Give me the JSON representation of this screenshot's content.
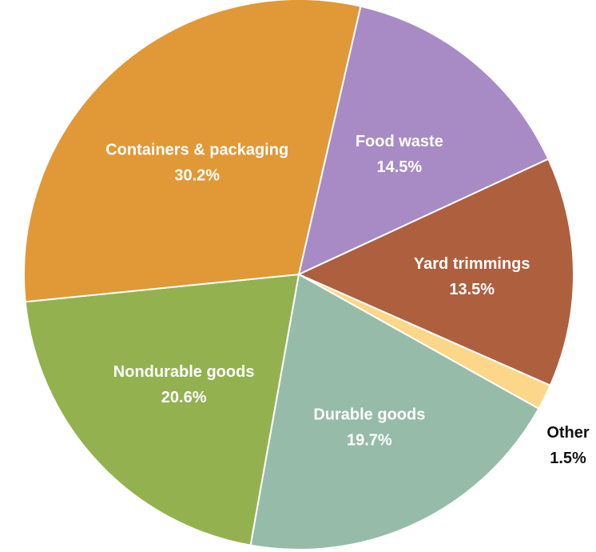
{
  "chart_data": {
    "type": "pie",
    "start_angle_deg": 13,
    "direction": "clockwise",
    "slices": [
      {
        "label": "Food waste",
        "value": 14.5,
        "value_label": "14.5%",
        "color": "#a88bc4",
        "label_color": "#ffffff"
      },
      {
        "label": "Yard trimmings",
        "value": 13.5,
        "value_label": "13.5%",
        "color": "#ae5f3e",
        "label_color": "#ffffff"
      },
      {
        "label": "Other",
        "value": 1.5,
        "value_label": "1.5%",
        "color": "#fcd78a",
        "label_color": "#111111"
      },
      {
        "label": "Durable goods",
        "value": 19.7,
        "value_label": "19.7%",
        "color": "#97bba9",
        "label_color": "#ffffff"
      },
      {
        "label": "Nondurable goods",
        "value": 20.6,
        "value_label": "20.6%",
        "color": "#94b150",
        "label_color": "#ffffff"
      },
      {
        "label": "Containers & packaging",
        "value": 30.2,
        "value_label": "30.2%",
        "color": "#e19837",
        "label_color": "#ffffff"
      }
    ]
  }
}
